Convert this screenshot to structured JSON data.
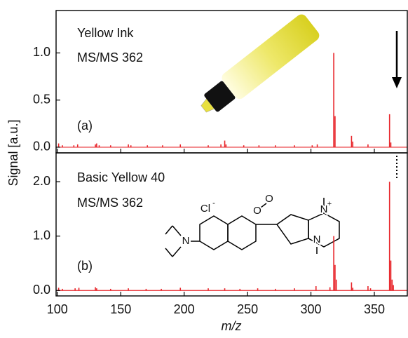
{
  "chart_data": [
    {
      "type": "stem",
      "annotations": [
        "Yellow Ink",
        "MS/MS 362",
        "(a)"
      ],
      "ylabel": "Signal [a.u.]",
      "x": [
        101,
        104,
        113,
        116,
        130,
        131,
        133,
        142,
        156,
        158,
        171,
        183,
        197,
        219,
        229,
        232,
        233,
        247,
        259,
        272,
        287,
        301,
        305,
        318,
        319,
        332,
        333,
        345,
        362,
        363
      ],
      "values": [
        0.04,
        0.02,
        0.02,
        0.03,
        0.03,
        0.04,
        0.02,
        0.02,
        0.03,
        0.02,
        0.02,
        0.02,
        0.03,
        0.02,
        0.03,
        0.07,
        0.03,
        0.02,
        0.02,
        0.02,
        0.02,
        0.02,
        0.03,
        1.0,
        0.33,
        0.12,
        0.06,
        0.03,
        0.35,
        0.05
      ],
      "color": "#e8262b",
      "xlim": [
        99,
        376
      ],
      "ylim": [
        -0.06,
        1.45
      ],
      "yticks": [
        {
          "value": 0,
          "label": "0.0"
        },
        {
          "value": 0.5,
          "label": "0.5"
        },
        {
          "value": 1,
          "label": "1.0"
        }
      ]
    },
    {
      "type": "stem",
      "annotations": [
        "Basic Yellow 40",
        "MS/MS 362",
        "(b)"
      ],
      "structure_labels": [
        "Cl",
        "-",
        "O",
        "O",
        "N",
        "+",
        "N",
        "N"
      ],
      "xlabel": "m/z",
      "x": [
        101,
        104,
        114,
        117,
        130,
        131,
        142,
        156,
        170,
        182,
        197,
        219,
        232,
        244,
        258,
        272,
        287,
        304,
        315,
        318,
        319,
        320,
        332,
        333,
        345,
        347,
        362,
        363,
        364,
        365
      ],
      "values": [
        0.05,
        0.03,
        0.04,
        0.05,
        0.06,
        0.04,
        0.03,
        0.04,
        0.03,
        0.03,
        0.05,
        0.04,
        0.04,
        0.03,
        0.04,
        0.03,
        0.04,
        0.08,
        0.06,
        1.0,
        0.47,
        0.2,
        0.15,
        0.05,
        0.08,
        0.04,
        2.0,
        0.55,
        0.2,
        0.1
      ],
      "color": "#e8262b",
      "xlim": [
        99,
        376
      ],
      "ylim": [
        -0.1,
        2.53
      ],
      "yticks": [
        {
          "value": 0,
          "label": "0.0"
        },
        {
          "value": 1,
          "label": "1.0"
        },
        {
          "value": 2,
          "label": "2.0"
        }
      ],
      "xticks": [
        100,
        150,
        200,
        250,
        300,
        350
      ]
    }
  ]
}
